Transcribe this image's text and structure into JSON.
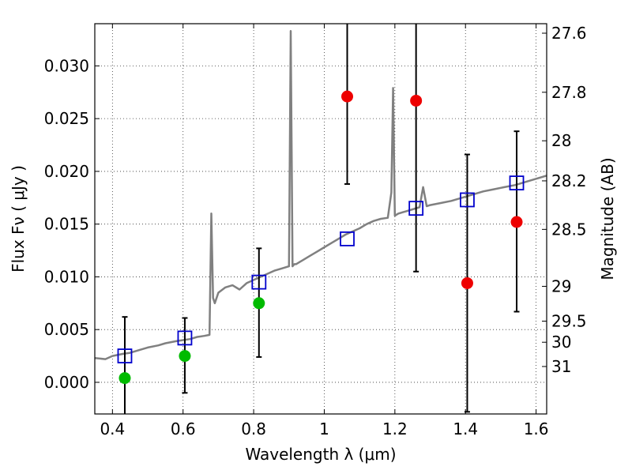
{
  "chart_data": {
    "type": "scatter",
    "title": "",
    "xlabel": "Wavelength  λ (μm)",
    "ylabel": "Flux  Fν  ( μJy )",
    "ylabel_right": "Magnitude (AB)",
    "xlim": [
      0.35,
      1.63
    ],
    "ylim": [
      -0.003,
      0.034
    ],
    "grid": true,
    "x_ticks": [
      0.4,
      0.6,
      0.8,
      1.0,
      1.2,
      1.4,
      1.6
    ],
    "x_tick_labels": [
      "0.4",
      "0.6",
      "0.8",
      "1",
      "1.2",
      "1.4",
      "1.6"
    ],
    "y_ticks": [
      0.0,
      0.005,
      0.01,
      0.015,
      0.02,
      0.025,
      0.03
    ],
    "y_tick_labels": [
      "0.000",
      "0.005",
      "0.010",
      "0.015",
      "0.020",
      "0.025",
      "0.030"
    ],
    "right_ticks": [
      {
        "label": "27.6",
        "flux": 0.0331
      },
      {
        "label": "27.8",
        "flux": 0.0275
      },
      {
        "label": "28",
        "flux": 0.0229
      },
      {
        "label": "28.2",
        "flux": 0.0191
      },
      {
        "label": "28.5",
        "flux": 0.0145
      },
      {
        "label": "29",
        "flux": 0.0091
      },
      {
        "label": "29.5",
        "flux": 0.0058
      },
      {
        "label": "30",
        "flux": 0.0038
      },
      {
        "label": "31",
        "flux": 0.0015
      }
    ],
    "series": [
      {
        "kind": "line",
        "color": "#808080",
        "x": [
          0.35,
          0.38,
          0.4,
          0.43,
          0.45,
          0.48,
          0.5,
          0.53,
          0.55,
          0.58,
          0.6,
          0.62,
          0.64,
          0.66,
          0.675,
          0.68,
          0.685,
          0.69,
          0.7,
          0.72,
          0.74,
          0.76,
          0.78,
          0.8,
          0.82,
          0.84,
          0.86,
          0.88,
          0.9,
          0.905,
          0.91,
          0.915,
          0.92,
          0.94,
          0.96,
          0.98,
          1.0,
          1.02,
          1.04,
          1.06,
          1.08,
          1.1,
          1.12,
          1.14,
          1.16,
          1.18,
          1.19,
          1.195,
          1.2,
          1.21,
          1.23,
          1.25,
          1.27,
          1.28,
          1.29,
          1.3,
          1.33,
          1.36,
          1.39,
          1.42,
          1.45,
          1.48,
          1.51,
          1.54,
          1.57,
          1.6,
          1.63
        ],
        "y": [
          0.0023,
          0.0022,
          0.0025,
          0.0027,
          0.0028,
          0.0031,
          0.0033,
          0.0035,
          0.0037,
          0.0039,
          0.004,
          0.0041,
          0.0043,
          0.0044,
          0.0045,
          0.016,
          0.008,
          0.0075,
          0.0085,
          0.009,
          0.0092,
          0.0088,
          0.0094,
          0.0097,
          0.01,
          0.0103,
          0.0106,
          0.0108,
          0.011,
          0.0333,
          0.011,
          0.0112,
          0.0112,
          0.0116,
          0.012,
          0.0124,
          0.0128,
          0.0132,
          0.0136,
          0.014,
          0.0143,
          0.0146,
          0.015,
          0.0153,
          0.0155,
          0.0156,
          0.018,
          0.0279,
          0.0158,
          0.016,
          0.0162,
          0.0164,
          0.0166,
          0.0185,
          0.0167,
          0.0168,
          0.017,
          0.0172,
          0.0175,
          0.0178,
          0.0181,
          0.0183,
          0.0185,
          0.0187,
          0.019,
          0.0193,
          0.0196
        ]
      },
      {
        "kind": "squares",
        "color": "#0000cc",
        "x": [
          0.435,
          0.605,
          0.815,
          1.065,
          1.26,
          1.405,
          1.545
        ],
        "y": [
          0.0025,
          0.0042,
          0.0095,
          0.0136,
          0.0165,
          0.0173,
          0.0189
        ]
      },
      {
        "kind": "points",
        "color": "#00bb00",
        "x": [
          0.435,
          0.605,
          0.815
        ],
        "y": [
          0.0004,
          0.0025,
          0.0075
        ],
        "yerr_low": [
          0.004,
          0.0035,
          0.0051
        ],
        "yerr_high": [
          0.0058,
          0.0036,
          0.0052
        ]
      },
      {
        "kind": "points",
        "color": "#ee0000",
        "x": [
          1.065,
          1.26,
          1.405,
          1.545
        ],
        "y": [
          0.0271,
          0.0267,
          0.0094,
          0.0152
        ],
        "yerr_low": [
          0.0083,
          0.0162,
          0.0122,
          0.0085
        ],
        "yerr_high": [
          0.01,
          0.01,
          0.0122,
          0.0086
        ]
      }
    ]
  }
}
